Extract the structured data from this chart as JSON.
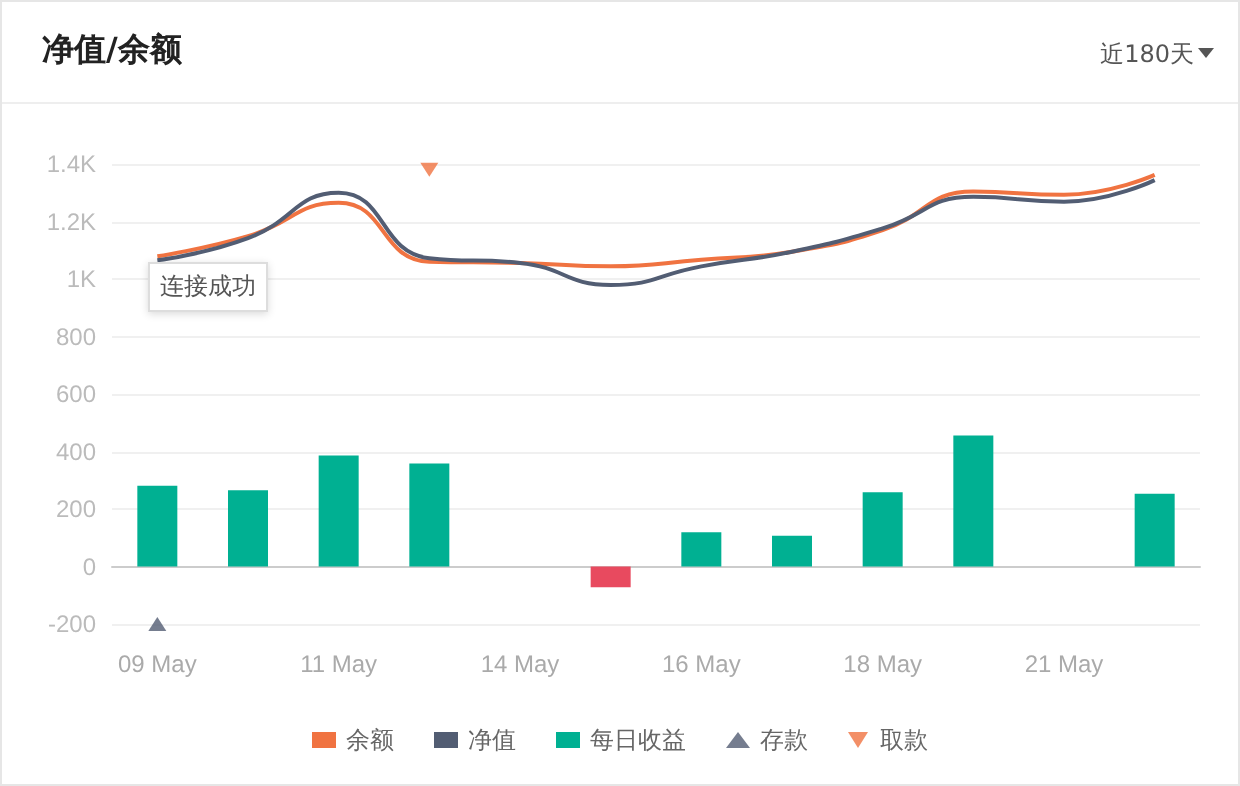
{
  "chart_data": {
    "type": "line",
    "title": "净值/余额",
    "subtitle": "近180天",
    "annotations": [
      "连接成功"
    ],
    "categories": [
      "09 May",
      null,
      "11 May",
      null,
      "14 May",
      null,
      "16 May",
      null,
      "18 May",
      null,
      "21 May",
      null
    ],
    "series": [
      {
        "name": "余额",
        "color": "#f07341",
        "values": [
          1079,
          1149,
          1265,
          1060,
          1056,
          1044,
          1067,
          1095,
          1170,
          1304,
          1293,
          1362
        ]
      },
      {
        "name": "净值",
        "color": "#525d73",
        "values": [
          1065,
          1142,
          1300,
          1072,
          1056,
          979,
          1044,
          1095,
          1176,
          1286,
          1269,
          1344
        ]
      },
      {
        "name": "每日收益",
        "type": "bar",
        "color": "#00b092",
        "colors": [
          "#00b092",
          "#00b092",
          "#00b092",
          "#00b092",
          "#00b092",
          "#e84a5f",
          "#00b092",
          "#00b092",
          "#00b092",
          "#00b092",
          "#00b092",
          "#00b092"
        ],
        "values": [
          281,
          265,
          386,
          358,
          null,
          -72,
          119,
          107,
          258,
          456,
          null,
          253
        ]
      },
      {
        "name": "存款",
        "type": "scatter",
        "marker": "triangle",
        "color": "#525d73",
        "values": [
          -200,
          null,
          null,
          null,
          null,
          null,
          null,
          null,
          null,
          null,
          null,
          null
        ]
      },
      {
        "name": "取款",
        "type": "scatter",
        "marker": "triangle",
        "color": "#f07341",
        "values": [
          null,
          null,
          null,
          1380,
          null,
          null,
          null,
          null,
          null,
          null,
          null,
          null
        ]
      }
    ],
    "ylim": [
      -200,
      1400
    ],
    "yticks": [
      -200,
      0,
      200,
      400,
      600,
      800,
      {
        "value": 1000,
        "label": "1K"
      },
      {
        "value": 1200,
        "label": "1.2K"
      },
      {
        "value": 1400,
        "label": "1.4K"
      }
    ],
    "grid": "y",
    "legend": "bottom",
    "marker": "none"
  }
}
